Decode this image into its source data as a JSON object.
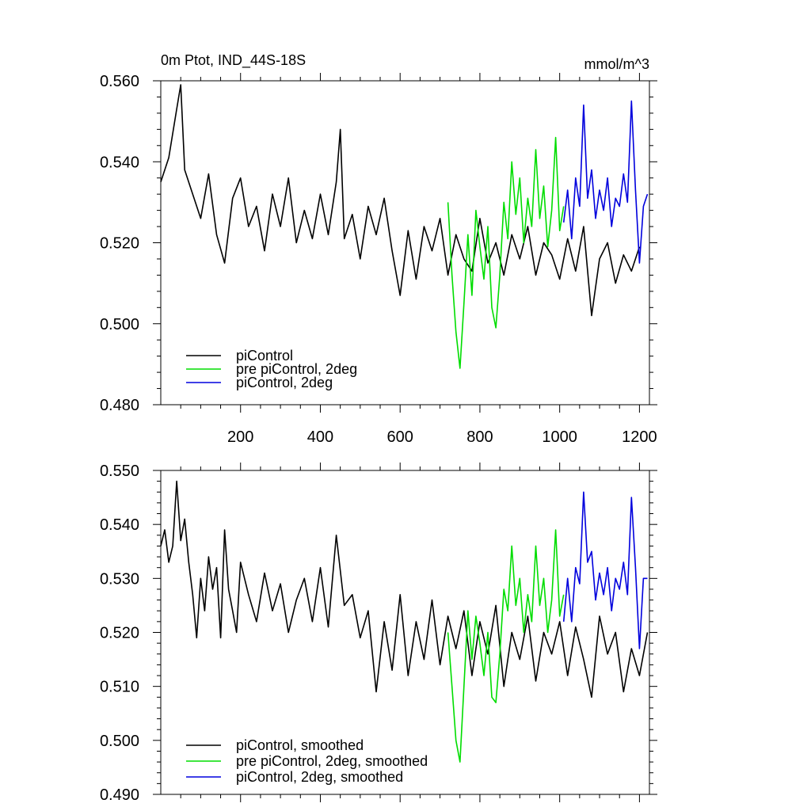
{
  "chart_data": [
    {
      "type": "line",
      "title": "0m Ptot, IND_44S-18S",
      "subtitle_right": "mmol/m^3",
      "xlim": [
        0,
        1225
      ],
      "ylim": [
        0.48,
        0.56
      ],
      "xticks": [
        200,
        400,
        600,
        800,
        1000,
        1200
      ],
      "xtick_labels": [
        "200",
        "400",
        "600",
        "800",
        "1000",
        "1200"
      ],
      "yticks": [
        0.48,
        0.5,
        0.52,
        0.54,
        0.56
      ],
      "ytick_labels": [
        "0.480",
        "0.500",
        "0.520",
        "0.540",
        "0.560"
      ],
      "legend_position": "bottom-left",
      "legend": [
        "piControl",
        "pre piControl, 2deg",
        "piControl, 2deg"
      ],
      "series": [
        {
          "name": "piControl",
          "color": "#000000",
          "x": [
            0,
            20,
            40,
            50,
            60,
            80,
            100,
            120,
            140,
            160,
            180,
            200,
            220,
            240,
            260,
            280,
            300,
            320,
            340,
            360,
            380,
            400,
            420,
            440,
            450,
            460,
            480,
            500,
            520,
            540,
            560,
            580,
            600,
            620,
            640,
            660,
            680,
            700,
            720,
            740,
            760,
            780,
            800,
            820,
            840,
            860,
            880,
            900,
            920,
            940,
            960,
            980,
            1000,
            1020,
            1040,
            1060,
            1080,
            1100,
            1120,
            1140,
            1160,
            1180,
            1200
          ],
          "y": [
            0.535,
            0.541,
            0.553,
            0.559,
            0.538,
            0.532,
            0.526,
            0.537,
            0.522,
            0.515,
            0.531,
            0.536,
            0.524,
            0.529,
            0.518,
            0.532,
            0.524,
            0.536,
            0.52,
            0.528,
            0.521,
            0.532,
            0.522,
            0.535,
            0.548,
            0.521,
            0.527,
            0.516,
            0.529,
            0.522,
            0.531,
            0.518,
            0.507,
            0.523,
            0.511,
            0.524,
            0.518,
            0.526,
            0.512,
            0.522,
            0.516,
            0.513,
            0.526,
            0.515,
            0.52,
            0.512,
            0.522,
            0.516,
            0.524,
            0.512,
            0.52,
            0.517,
            0.511,
            0.521,
            0.513,
            0.524,
            0.502,
            0.516,
            0.52,
            0.51,
            0.517,
            0.513,
            0.519
          ]
        },
        {
          "name": "pre piControl, 2deg",
          "color": "#00dd00",
          "x": [
            720,
            730,
            740,
            750,
            760,
            770,
            780,
            790,
            800,
            810,
            820,
            830,
            840,
            850,
            860,
            870,
            880,
            890,
            900,
            910,
            920,
            930,
            940,
            950,
            960,
            970,
            980,
            990,
            1000,
            1010
          ],
          "y": [
            0.53,
            0.512,
            0.498,
            0.489,
            0.505,
            0.522,
            0.507,
            0.528,
            0.519,
            0.511,
            0.524,
            0.504,
            0.499,
            0.512,
            0.53,
            0.521,
            0.54,
            0.527,
            0.536,
            0.52,
            0.531,
            0.524,
            0.543,
            0.526,
            0.534,
            0.519,
            0.528,
            0.546,
            0.523,
            0.529
          ]
        },
        {
          "name": "piControl, 2deg",
          "color": "#0000dd",
          "x": [
            1010,
            1020,
            1030,
            1040,
            1050,
            1060,
            1070,
            1080,
            1090,
            1100,
            1110,
            1120,
            1130,
            1140,
            1150,
            1160,
            1170,
            1180,
            1190,
            1200,
            1210,
            1220
          ],
          "y": [
            0.525,
            0.533,
            0.521,
            0.536,
            0.529,
            0.554,
            0.531,
            0.538,
            0.526,
            0.533,
            0.528,
            0.536,
            0.524,
            0.531,
            0.529,
            0.537,
            0.53,
            0.555,
            0.533,
            0.515,
            0.529,
            0.532
          ]
        }
      ]
    },
    {
      "type": "line",
      "xlim": [
        0,
        1225
      ],
      "ylim": [
        0.49,
        0.55
      ],
      "xticks": [
        200,
        400,
        600,
        800,
        1000,
        1200
      ],
      "yticks": [
        0.49,
        0.5,
        0.51,
        0.52,
        0.53,
        0.54,
        0.55
      ],
      "ytick_labels": [
        "0.490",
        "0.500",
        "0.510",
        "0.520",
        "0.530",
        "0.540",
        "0.550"
      ],
      "legend_position": "bottom-left",
      "legend": [
        "piControl, smoothed",
        "pre piControl, 2deg, smoothed",
        "piControl, 2deg, smoothed"
      ],
      "series": [
        {
          "name": "piControl, smoothed",
          "color": "#000000",
          "x": [
            0,
            10,
            20,
            30,
            40,
            50,
            60,
            70,
            80,
            90,
            100,
            110,
            120,
            130,
            140,
            150,
            160,
            170,
            180,
            190,
            200,
            220,
            240,
            260,
            280,
            300,
            320,
            340,
            360,
            380,
            400,
            420,
            440,
            460,
            480,
            500,
            520,
            540,
            560,
            580,
            600,
            620,
            640,
            660,
            680,
            700,
            720,
            740,
            760,
            780,
            800,
            820,
            840,
            860,
            880,
            900,
            920,
            940,
            960,
            980,
            1000,
            1020,
            1040,
            1060,
            1080,
            1100,
            1120,
            1140,
            1160,
            1180,
            1200,
            1220
          ],
          "y": [
            0.536,
            0.539,
            0.533,
            0.536,
            0.548,
            0.537,
            0.541,
            0.533,
            0.527,
            0.519,
            0.53,
            0.524,
            0.534,
            0.528,
            0.532,
            0.519,
            0.539,
            0.528,
            0.524,
            0.52,
            0.533,
            0.527,
            0.522,
            0.531,
            0.524,
            0.529,
            0.52,
            0.526,
            0.53,
            0.522,
            0.532,
            0.521,
            0.538,
            0.525,
            0.527,
            0.519,
            0.524,
            0.509,
            0.522,
            0.513,
            0.527,
            0.512,
            0.522,
            0.515,
            0.526,
            0.514,
            0.523,
            0.517,
            0.524,
            0.512,
            0.522,
            0.516,
            0.525,
            0.51,
            0.52,
            0.515,
            0.523,
            0.511,
            0.52,
            0.516,
            0.522,
            0.512,
            0.521,
            0.515,
            0.508,
            0.523,
            0.516,
            0.52,
            0.509,
            0.517,
            0.512,
            0.52
          ]
        },
        {
          "name": "pre piControl, 2deg, smoothed",
          "color": "#00dd00",
          "x": [
            720,
            730,
            740,
            750,
            760,
            770,
            780,
            790,
            800,
            810,
            820,
            830,
            840,
            850,
            860,
            870,
            880,
            890,
            900,
            910,
            920,
            930,
            940,
            950,
            960,
            970,
            980,
            990,
            1000,
            1010
          ],
          "y": [
            0.52,
            0.51,
            0.5,
            0.496,
            0.51,
            0.524,
            0.515,
            0.523,
            0.518,
            0.512,
            0.52,
            0.508,
            0.507,
            0.516,
            0.528,
            0.524,
            0.536,
            0.525,
            0.53,
            0.52,
            0.527,
            0.522,
            0.536,
            0.525,
            0.53,
            0.52,
            0.526,
            0.539,
            0.523,
            0.527
          ]
        },
        {
          "name": "piControl, 2deg, smoothed",
          "color": "#0000dd",
          "x": [
            1010,
            1020,
            1030,
            1040,
            1050,
            1060,
            1070,
            1080,
            1090,
            1100,
            1110,
            1120,
            1130,
            1140,
            1150,
            1160,
            1170,
            1180,
            1190,
            1200,
            1210,
            1220
          ],
          "y": [
            0.522,
            0.53,
            0.522,
            0.532,
            0.529,
            0.546,
            0.533,
            0.535,
            0.526,
            0.531,
            0.527,
            0.532,
            0.524,
            0.53,
            0.528,
            0.533,
            0.527,
            0.545,
            0.532,
            0.517,
            0.53,
            0.53
          ]
        }
      ]
    }
  ]
}
